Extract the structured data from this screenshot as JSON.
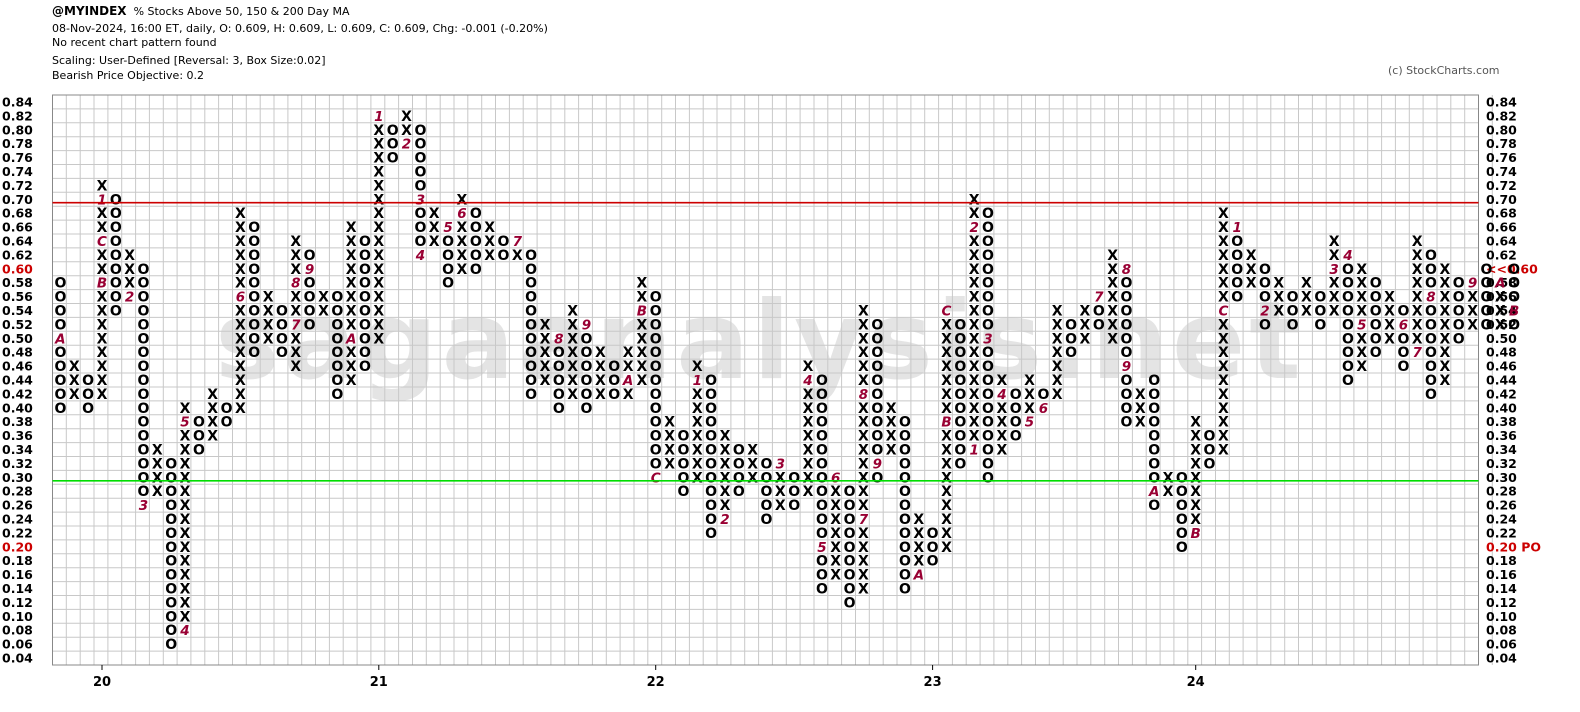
{
  "header": {
    "symbol": "@MYINDEX",
    "description": "% Stocks Above 50, 150 & 200 Day MA",
    "quote_line": "08-Nov-2024, 16:00 ET, daily, O: 0.609, H: 0.609, L: 0.609, C: 0.609, Chg: -0.001 (-0.20%)",
    "pattern_line": "No recent chart pattern found",
    "scaling_line": "Scaling: User-Defined [Reversal: 3, Box Size:0.02]",
    "objective_line": "Bearish Price Objective: 0.2",
    "copyright": "(c) StockCharts.com",
    "watermark": "sagaanalysis.net"
  },
  "chart_data": {
    "type": "point-and-figure",
    "box_size": 0.02,
    "reversal": 3,
    "ylim": [
      0.04,
      0.84
    ],
    "y_ticks": [
      "0.84",
      "0.82",
      "0.80",
      "0.78",
      "0.76",
      "0.74",
      "0.72",
      "0.70",
      "0.68",
      "0.66",
      "0.64",
      "0.62",
      "0.60",
      "0.58",
      "0.56",
      "0.54",
      "0.52",
      "0.50",
      "0.48",
      "0.46",
      "0.44",
      "0.42",
      "0.40",
      "0.38",
      "0.36",
      "0.34",
      "0.32",
      "0.30",
      "0.28",
      "0.26",
      "0.24",
      "0.22",
      "0.20",
      "0.18",
      "0.16",
      "0.14",
      "0.12",
      "0.10",
      "0.08",
      "0.06",
      "0.04"
    ],
    "x_ticks": [
      {
        "label": "20",
        "col": 3
      },
      {
        "label": "21",
        "col": 23
      },
      {
        "label": "22",
        "col": 43
      },
      {
        "label": "23",
        "col": 63
      },
      {
        "label": "24",
        "col": 82
      }
    ],
    "current_price": {
      "value": 0.6,
      "label": "<<0.60",
      "left_label": "0.60",
      "color": "#cc0000"
    },
    "price_objective": {
      "value": 0.2,
      "label": "0.20 PO",
      "left_label": "0.20",
      "color": "#cc0000"
    },
    "resistance_line": {
      "value": 0.695,
      "color": "#cc0000"
    },
    "support_line": {
      "value": 0.295,
      "color": "#00dd00"
    },
    "columns": [
      {
        "t": "O",
        "hi": 0.58,
        "lo": 0.4,
        "m": {
          "0.50": "A"
        }
      },
      {
        "t": "X",
        "hi": 0.46,
        "lo": 0.42
      },
      {
        "t": "O",
        "hi": 0.44,
        "lo": 0.4
      },
      {
        "t": "X",
        "hi": 0.72,
        "lo": 0.42,
        "m": {
          "0.70": "1",
          "0.64": "C",
          "0.58": "B"
        }
      },
      {
        "t": "O",
        "hi": 0.7,
        "lo": 0.54
      },
      {
        "t": "X",
        "hi": 0.62,
        "lo": 0.56,
        "m": {
          "0.56": "2"
        }
      },
      {
        "t": "O",
        "hi": 0.6,
        "lo": 0.26,
        "m": {
          "0.26": "3"
        }
      },
      {
        "t": "X",
        "hi": 0.34,
        "lo": 0.28
      },
      {
        "t": "O",
        "hi": 0.32,
        "lo": 0.06
      },
      {
        "t": "X",
        "hi": 0.4,
        "lo": 0.08,
        "m": {
          "0.08": "4",
          "0.38": "5"
        }
      },
      {
        "t": "O",
        "hi": 0.38,
        "lo": 0.34
      },
      {
        "t": "X",
        "hi": 0.42,
        "lo": 0.36
      },
      {
        "t": "O",
        "hi": 0.4,
        "lo": 0.38
      },
      {
        "t": "X",
        "hi": 0.68,
        "lo": 0.4,
        "m": {
          "0.56": "6"
        }
      },
      {
        "t": "O",
        "hi": 0.66,
        "lo": 0.48
      },
      {
        "t": "X",
        "hi": 0.56,
        "lo": 0.5
      },
      {
        "t": "O",
        "hi": 0.54,
        "lo": 0.48
      },
      {
        "t": "X",
        "hi": 0.64,
        "lo": 0.46,
        "m": {
          "0.58": "8",
          "0.52": "7"
        }
      },
      {
        "t": "O",
        "hi": 0.62,
        "lo": 0.52,
        "m": {
          "0.60": "9"
        }
      },
      {
        "t": "X",
        "hi": 0.56,
        "lo": 0.54
      },
      {
        "t": "O",
        "hi": 0.56,
        "lo": 0.42
      },
      {
        "t": "X",
        "hi": 0.66,
        "lo": 0.44,
        "m": {
          "0.50": "A"
        }
      },
      {
        "t": "O",
        "hi": 0.64,
        "lo": 0.46
      },
      {
        "t": "X",
        "hi": 0.82,
        "lo": 0.5,
        "m": {
          "0.82": "1",
          "0.48": "B"
        }
      },
      {
        "t": "O",
        "hi": 0.8,
        "lo": 0.76
      },
      {
        "t": "X",
        "hi": 0.82,
        "lo": 0.78,
        "m": {
          "0.78": "2"
        }
      },
      {
        "t": "O",
        "hi": 0.8,
        "lo": 0.62,
        "m": {
          "0.70": "3",
          "0.62": "4"
        }
      },
      {
        "t": "X",
        "hi": 0.68,
        "lo": 0.64
      },
      {
        "t": "O",
        "hi": 0.66,
        "lo": 0.58,
        "m": {
          "0.66": "5"
        }
      },
      {
        "t": "X",
        "hi": 0.7,
        "lo": 0.6,
        "m": {
          "0.68": "6"
        }
      },
      {
        "t": "O",
        "hi": 0.68,
        "lo": 0.6
      },
      {
        "t": "X",
        "hi": 0.66,
        "lo": 0.62
      },
      {
        "t": "O",
        "hi": 0.64,
        "lo": 0.62
      },
      {
        "t": "X",
        "hi": 0.64,
        "lo": 0.62,
        "m": {
          "0.64": "7"
        }
      },
      {
        "t": "O",
        "hi": 0.62,
        "lo": 0.42
      },
      {
        "t": "X",
        "hi": 0.52,
        "lo": 0.44
      },
      {
        "t": "O",
        "hi": 0.5,
        "lo": 0.4,
        "m": {
          "0.50": "8"
        }
      },
      {
        "t": "X",
        "hi": 0.54,
        "lo": 0.42
      },
      {
        "t": "O",
        "hi": 0.52,
        "lo": 0.4,
        "m": {
          "0.52": "9"
        }
      },
      {
        "t": "X",
        "hi": 0.48,
        "lo": 0.42
      },
      {
        "t": "O",
        "hi": 0.46,
        "lo": 0.42
      },
      {
        "t": "X",
        "hi": 0.48,
        "lo": 0.42,
        "m": {
          "0.44": "A"
        }
      },
      {
        "t": "X",
        "hi": 0.58,
        "lo": 0.44,
        "m": {
          "0.54": "B"
        }
      },
      {
        "t": "O",
        "hi": 0.56,
        "lo": 0.3,
        "m": {
          "0.30": "C"
        }
      },
      {
        "t": "X",
        "hi": 0.38,
        "lo": 0.32
      },
      {
        "t": "O",
        "hi": 0.36,
        "lo": 0.28
      },
      {
        "t": "X",
        "hi": 0.46,
        "lo": 0.3,
        "m": {
          "0.44": "1"
        }
      },
      {
        "t": "O",
        "hi": 0.44,
        "lo": 0.22
      },
      {
        "t": "X",
        "hi": 0.36,
        "lo": 0.24,
        "m": {
          "0.24": "2"
        }
      },
      {
        "t": "O",
        "hi": 0.34,
        "lo": 0.28
      },
      {
        "t": "X",
        "hi": 0.34,
        "lo": 0.3
      },
      {
        "t": "O",
        "hi": 0.32,
        "lo": 0.24
      },
      {
        "t": "X",
        "hi": 0.32,
        "lo": 0.26,
        "m": {
          "0.32": "3"
        }
      },
      {
        "t": "O",
        "hi": 0.3,
        "lo": 0.26
      },
      {
        "t": "X",
        "hi": 0.46,
        "lo": 0.28,
        "m": {
          "0.44": "4"
        }
      },
      {
        "t": "O",
        "hi": 0.44,
        "lo": 0.14,
        "m": {
          "0.20": "5"
        }
      },
      {
        "t": "X",
        "hi": 0.3,
        "lo": 0.16,
        "m": {
          "0.30": "6"
        }
      },
      {
        "t": "O",
        "hi": 0.28,
        "lo": 0.12
      },
      {
        "t": "X",
        "hi": 0.54,
        "lo": 0.14,
        "m": {
          "0.24": "7",
          "0.42": "8"
        }
      },
      {
        "t": "O",
        "hi": 0.52,
        "lo": 0.3,
        "m": {
          "0.32": "9"
        }
      },
      {
        "t": "X",
        "hi": 0.4,
        "lo": 0.34
      },
      {
        "t": "O",
        "hi": 0.38,
        "lo": 0.14
      },
      {
        "t": "X",
        "hi": 0.24,
        "lo": 0.16,
        "m": {
          "0.16": "A"
        }
      },
      {
        "t": "O",
        "hi": 0.22,
        "lo": 0.18
      },
      {
        "t": "X",
        "hi": 0.54,
        "lo": 0.2,
        "m": {
          "0.54": "C",
          "0.38": "B"
        }
      },
      {
        "t": "O",
        "hi": 0.52,
        "lo": 0.32
      },
      {
        "t": "X",
        "hi": 0.7,
        "lo": 0.34,
        "m": {
          "0.66": "2",
          "0.34": "1"
        }
      },
      {
        "t": "O",
        "hi": 0.68,
        "lo": 0.3,
        "m": {
          "0.50": "3"
        }
      },
      {
        "t": "X",
        "hi": 0.44,
        "lo": 0.34,
        "m": {
          "0.42": "4"
        }
      },
      {
        "t": "O",
        "hi": 0.42,
        "lo": 0.36
      },
      {
        "t": "X",
        "hi": 0.44,
        "lo": 0.38,
        "m": {
          "0.38": "5"
        }
      },
      {
        "t": "O",
        "hi": 0.42,
        "lo": 0.4,
        "m": {
          "0.40": "6"
        }
      },
      {
        "t": "X",
        "hi": 0.54,
        "lo": 0.42
      },
      {
        "t": "O",
        "hi": 0.52,
        "lo": 0.48
      },
      {
        "t": "X",
        "hi": 0.54,
        "lo": 0.5
      },
      {
        "t": "O",
        "hi": 0.56,
        "lo": 0.52,
        "m": {
          "0.56": "7"
        }
      },
      {
        "t": "X",
        "hi": 0.62,
        "lo": 0.5
      },
      {
        "t": "O",
        "hi": 0.6,
        "lo": 0.38,
        "m": {
          "0.60": "8",
          "0.46": "9"
        }
      },
      {
        "t": "X",
        "hi": 0.42,
        "lo": 0.38
      },
      {
        "t": "O",
        "hi": 0.44,
        "lo": 0.26,
        "m": {
          "0.28": "A"
        }
      },
      {
        "t": "X",
        "hi": 0.3,
        "lo": 0.28
      },
      {
        "t": "O",
        "hi": 0.3,
        "lo": 0.2
      },
      {
        "t": "X",
        "hi": 0.38,
        "lo": 0.22,
        "m": {
          "0.22": "B"
        }
      },
      {
        "t": "O",
        "hi": 0.36,
        "lo": 0.32
      },
      {
        "t": "X",
        "hi": 0.68,
        "lo": 0.34,
        "m": {
          "0.54": "C"
        }
      },
      {
        "t": "O",
        "hi": 0.66,
        "lo": 0.56,
        "m": {
          "0.66": "1"
        }
      },
      {
        "t": "X",
        "hi": 0.62,
        "lo": 0.58
      },
      {
        "t": "O",
        "hi": 0.6,
        "lo": 0.52,
        "m": {
          "0.54": "2"
        }
      },
      {
        "t": "X",
        "hi": 0.58,
        "lo": 0.54
      },
      {
        "t": "O",
        "hi": 0.56,
        "lo": 0.52
      },
      {
        "t": "X",
        "hi": 0.58,
        "lo": 0.54
      },
      {
        "t": "O",
        "hi": 0.56,
        "lo": 0.52
      },
      {
        "t": "X",
        "hi": 0.64,
        "lo": 0.54,
        "m": {
          "0.60": "3"
        }
      },
      {
        "t": "O",
        "hi": 0.62,
        "lo": 0.44,
        "m": {
          "0.62": "4"
        }
      },
      {
        "t": "X",
        "hi": 0.6,
        "lo": 0.46,
        "m": {
          "0.52": "5"
        }
      },
      {
        "t": "O",
        "hi": 0.58,
        "lo": 0.48
      },
      {
        "t": "X",
        "hi": 0.56,
        "lo": 0.5
      },
      {
        "t": "O",
        "hi": 0.54,
        "lo": 0.46,
        "m": {
          "0.52": "6"
        }
      },
      {
        "t": "X",
        "hi": 0.64,
        "lo": 0.48,
        "m": {
          "0.48": "7"
        }
      },
      {
        "t": "O",
        "hi": 0.62,
        "lo": 0.42,
        "m": {
          "0.56": "8"
        }
      },
      {
        "t": "X",
        "hi": 0.6,
        "lo": 0.44
      },
      {
        "t": "O",
        "hi": 0.58,
        "lo": 0.5
      },
      {
        "t": "X",
        "hi": 0.58,
        "lo": 0.52,
        "m": {
          "0.58": "9"
        }
      },
      {
        "t": "O",
        "hi": 0.6,
        "lo": 0.52
      },
      {
        "t": "X",
        "hi": 0.58,
        "lo": 0.52,
        "m": {
          "0.58": "A"
        }
      },
      {
        "t": "O",
        "hi": 0.6,
        "lo": 0.52,
        "m": {
          "0.54": "B"
        }
      }
    ]
  }
}
